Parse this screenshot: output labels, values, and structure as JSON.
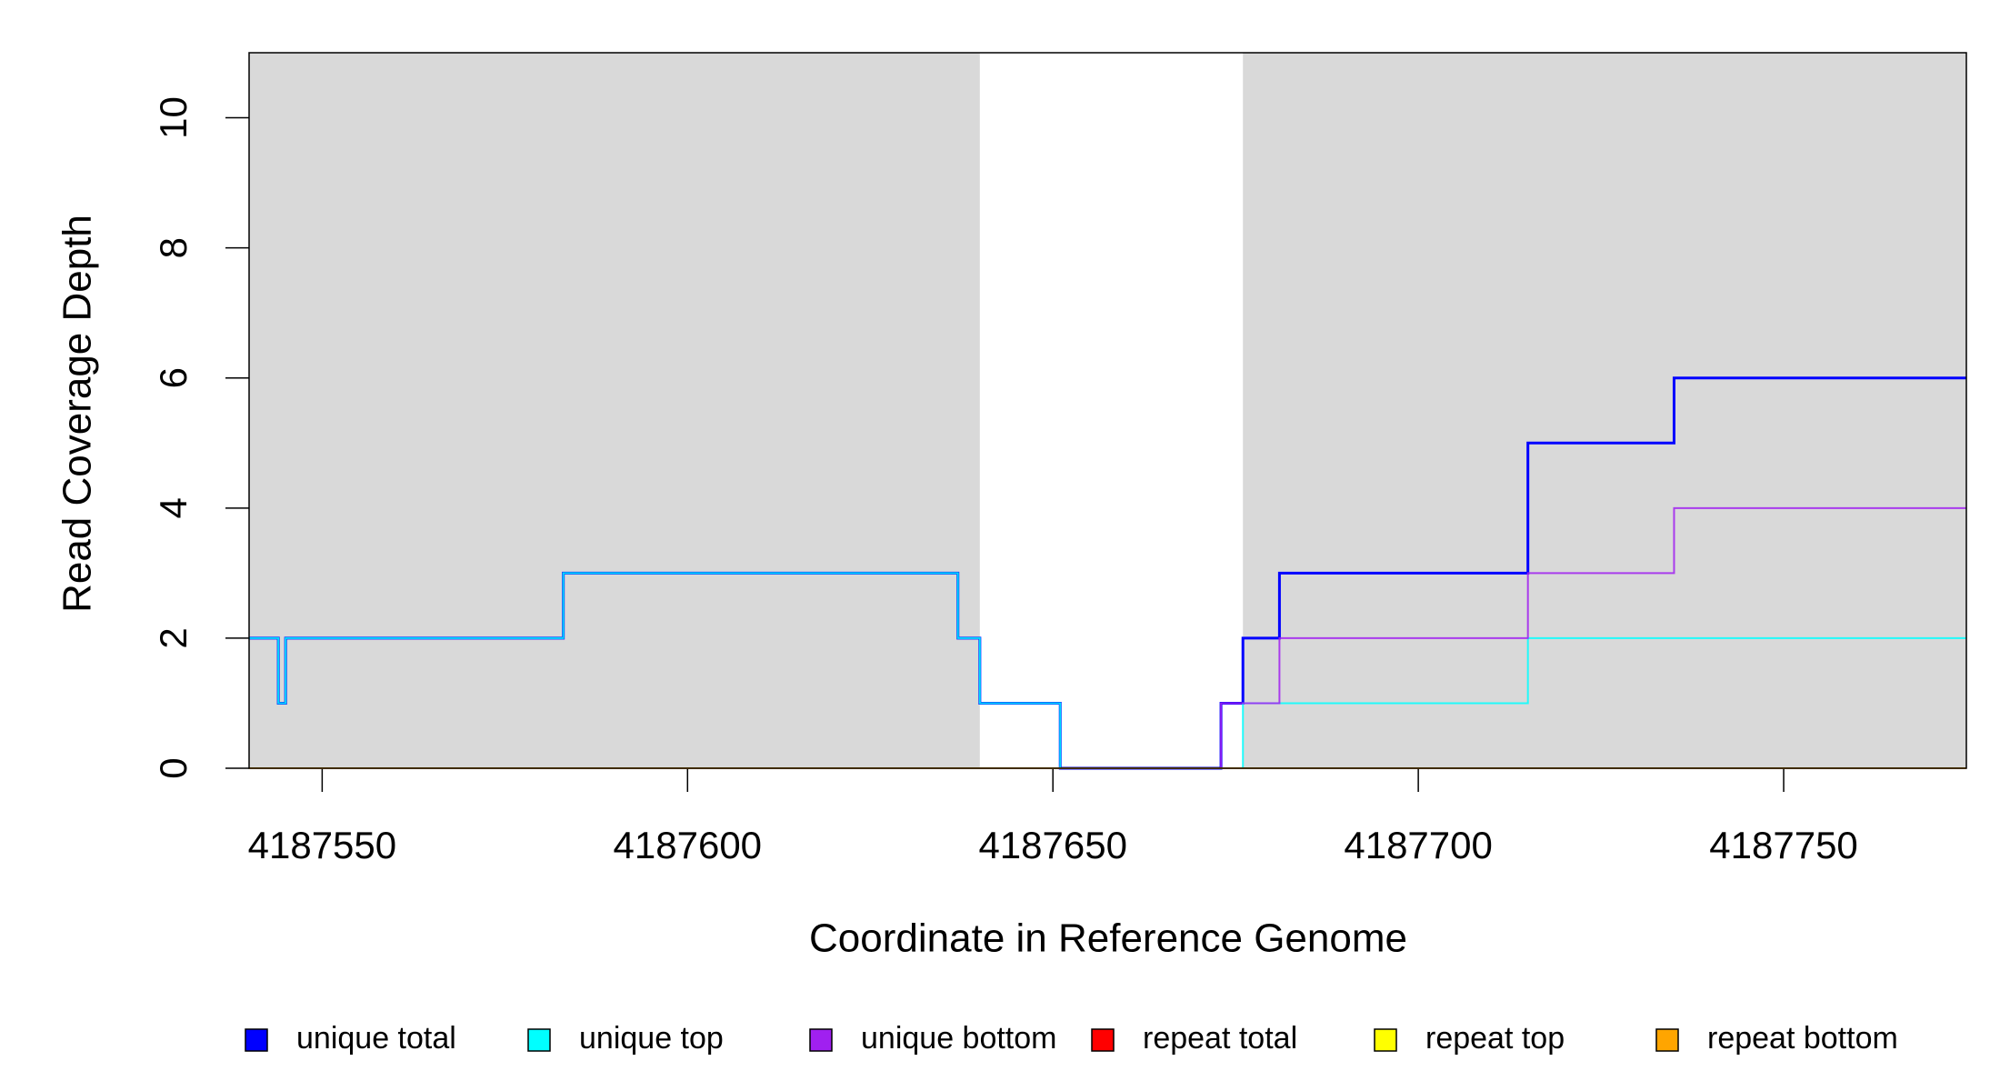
{
  "chart_data": {
    "type": "step",
    "x_label": "Coordinate in Reference Genome",
    "y_label": "Read Coverage Depth",
    "xlim": [
      4187540,
      4187775
    ],
    "ylim": [
      0,
      11
    ],
    "xticks": [
      4187550,
      4187600,
      4187650,
      4187700,
      4187750
    ],
    "yticks": [
      0,
      2,
      4,
      6,
      8,
      10
    ],
    "shaded_regions": [
      [
        4187540,
        4187640
      ],
      [
        4187676,
        4187775
      ]
    ],
    "shade_color": "#d9d9d9",
    "legend": "bottom",
    "x": [
      4187540,
      4187544,
      4187545,
      4187583,
      4187637,
      4187640,
      4187651,
      4187673,
      4187676,
      4187681,
      4187715,
      4187735,
      4187775
    ],
    "series": [
      {
        "name": "unique total",
        "color": "#0000ff",
        "values": [
          2,
          1,
          2,
          3,
          2,
          1,
          0,
          1,
          2,
          3,
          5,
          6,
          6
        ]
      },
      {
        "name": "unique top",
        "color": "#00ffff",
        "values": [
          2,
          1,
          2,
          3,
          2,
          1,
          0,
          0,
          1,
          1,
          2,
          2,
          2
        ]
      },
      {
        "name": "unique bottom",
        "color": "#a020f0",
        "values": [
          0,
          0,
          0,
          0,
          0,
          0,
          0,
          1,
          1,
          2,
          3,
          4,
          4
        ]
      },
      {
        "name": "repeat total",
        "color": "#ff0000",
        "values": [
          0,
          0,
          0,
          0,
          0,
          0,
          0,
          0,
          0,
          0,
          0,
          0,
          0
        ]
      },
      {
        "name": "repeat top",
        "color": "#ffff00",
        "values": [
          0,
          0,
          0,
          0,
          0,
          0,
          0,
          0,
          0,
          0,
          0,
          0,
          0
        ]
      },
      {
        "name": "repeat bottom",
        "color": "#ffa500",
        "values": [
          0,
          0,
          0,
          0,
          0,
          0,
          0,
          0,
          0,
          0,
          0,
          0,
          0
        ]
      }
    ]
  }
}
